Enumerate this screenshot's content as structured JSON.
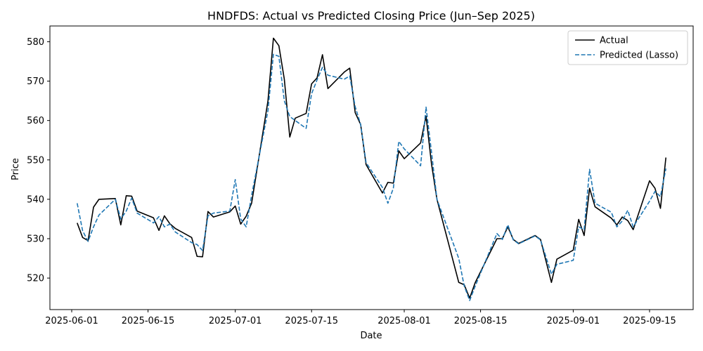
{
  "chart_data": {
    "type": "line",
    "title": "HNDFDS: Actual vs Predicted Closing Price (Jun–Sep 2025)",
    "xlabel": "Date",
    "ylabel": "Price",
    "xlim": [
      "2025-05-28",
      "2025-09-23"
    ],
    "ylim": [
      512,
      584
    ],
    "x_ticks": [
      "2025-06-01",
      "2025-06-15",
      "2025-07-01",
      "2025-07-15",
      "2025-08-01",
      "2025-08-15",
      "2025-09-01",
      "2025-09-15"
    ],
    "y_ticks": [
      520,
      530,
      540,
      550,
      560,
      570,
      580
    ],
    "legend_position": "top-right",
    "grid": false,
    "series": [
      {
        "name": "Actual",
        "color": "#000000",
        "style": "solid",
        "points": [
          [
            "2025-06-02",
            534.0
          ],
          [
            "2025-06-03",
            530.3
          ],
          [
            "2025-06-04",
            529.5
          ],
          [
            "2025-06-05",
            538.0
          ],
          [
            "2025-06-06",
            540.0
          ],
          [
            "2025-06-09",
            540.2
          ],
          [
            "2025-06-10",
            533.5
          ],
          [
            "2025-06-11",
            540.9
          ],
          [
            "2025-06-12",
            540.8
          ],
          [
            "2025-06-13",
            537.0
          ],
          [
            "2025-06-16",
            535.3
          ],
          [
            "2025-06-17",
            532.1
          ],
          [
            "2025-06-18",
            535.8
          ],
          [
            "2025-06-19",
            533.8
          ],
          [
            "2025-06-20",
            532.6
          ],
          [
            "2025-06-23",
            530.3
          ],
          [
            "2025-06-24",
            525.5
          ],
          [
            "2025-06-25",
            525.4
          ],
          [
            "2025-06-26",
            536.9
          ],
          [
            "2025-06-27",
            535.5
          ],
          [
            "2025-06-30",
            536.8
          ],
          [
            "2025-07-01",
            538.3
          ],
          [
            "2025-07-02",
            533.7
          ],
          [
            "2025-07-03",
            535.7
          ],
          [
            "2025-07-04",
            539.0
          ],
          [
            "2025-07-07",
            565.0
          ],
          [
            "2025-07-08",
            580.9
          ],
          [
            "2025-07-09",
            579.0
          ],
          [
            "2025-07-10",
            570.5
          ],
          [
            "2025-07-11",
            555.8
          ],
          [
            "2025-07-12",
            560.6
          ],
          [
            "2025-07-14",
            561.8
          ],
          [
            "2025-07-15",
            569.3
          ],
          [
            "2025-07-16",
            570.8
          ],
          [
            "2025-07-17",
            576.7
          ],
          [
            "2025-07-18",
            568.1
          ],
          [
            "2025-07-21",
            572.3
          ],
          [
            "2025-07-22",
            573.3
          ],
          [
            "2025-07-23",
            562.0
          ],
          [
            "2025-07-24",
            559.0
          ],
          [
            "2025-07-25",
            548.8
          ],
          [
            "2025-07-28",
            541.6
          ],
          [
            "2025-07-29",
            544.3
          ],
          [
            "2025-07-30",
            544.1
          ],
          [
            "2025-07-31",
            552.3
          ],
          [
            "2025-08-01",
            550.3
          ],
          [
            "2025-08-04",
            554.3
          ],
          [
            "2025-08-05",
            561.1
          ],
          [
            "2025-08-06",
            549.0
          ],
          [
            "2025-08-07",
            540.0
          ],
          [
            "2025-08-11",
            518.9
          ],
          [
            "2025-08-12",
            518.3
          ],
          [
            "2025-08-13",
            514.9
          ],
          [
            "2025-08-14",
            518.8
          ],
          [
            "2025-08-18",
            530.0
          ],
          [
            "2025-08-19",
            530.0
          ],
          [
            "2025-08-20",
            533.0
          ],
          [
            "2025-08-21",
            529.8
          ],
          [
            "2025-08-22",
            528.8
          ],
          [
            "2025-08-25",
            530.8
          ],
          [
            "2025-08-26",
            529.8
          ],
          [
            "2025-08-28",
            518.9
          ],
          [
            "2025-08-29",
            524.8
          ],
          [
            "2025-09-01",
            527.1
          ],
          [
            "2025-09-02",
            534.9
          ],
          [
            "2025-09-03",
            530.8
          ],
          [
            "2025-09-04",
            542.8
          ],
          [
            "2025-09-05",
            538.1
          ],
          [
            "2025-09-08",
            535.2
          ],
          [
            "2025-09-09",
            533.5
          ],
          [
            "2025-09-10",
            535.5
          ],
          [
            "2025-09-11",
            534.6
          ],
          [
            "2025-09-12",
            532.3
          ],
          [
            "2025-09-15",
            544.7
          ],
          [
            "2025-09-16",
            542.8
          ],
          [
            "2025-09-17",
            537.7
          ],
          [
            "2025-09-18",
            550.6
          ]
        ]
      },
      {
        "name": "Predicted (Lasso)",
        "color": "#1f77b4",
        "style": "dashed",
        "points": [
          [
            "2025-06-02",
            539.0
          ],
          [
            "2025-06-03",
            532.0
          ],
          [
            "2025-06-04",
            529.3
          ],
          [
            "2025-06-05",
            533.0
          ],
          [
            "2025-06-06",
            536.0
          ],
          [
            "2025-06-09",
            540.0
          ],
          [
            "2025-06-10",
            535.0
          ],
          [
            "2025-06-11",
            537.0
          ],
          [
            "2025-06-12",
            540.3
          ],
          [
            "2025-06-13",
            536.5
          ],
          [
            "2025-06-16",
            534.0
          ],
          [
            "2025-06-17",
            535.6
          ],
          [
            "2025-06-18",
            533.0
          ],
          [
            "2025-06-19",
            533.7
          ],
          [
            "2025-06-20",
            531.7
          ],
          [
            "2025-06-23",
            529.0
          ],
          [
            "2025-06-24",
            528.5
          ],
          [
            "2025-06-25",
            527.0
          ],
          [
            "2025-06-26",
            535.8
          ],
          [
            "2025-06-27",
            536.5
          ],
          [
            "2025-06-30",
            537.0
          ],
          [
            "2025-07-01",
            545.0
          ],
          [
            "2025-07-02",
            535.0
          ],
          [
            "2025-07-03",
            533.0
          ],
          [
            "2025-07-04",
            541.0
          ],
          [
            "2025-07-07",
            562.5
          ],
          [
            "2025-07-08",
            576.8
          ],
          [
            "2025-07-09",
            576.3
          ],
          [
            "2025-07-10",
            565.0
          ],
          [
            "2025-07-11",
            561.0
          ],
          [
            "2025-07-12",
            560.0
          ],
          [
            "2025-07-14",
            558.0
          ],
          [
            "2025-07-15",
            566.8
          ],
          [
            "2025-07-16",
            570.3
          ],
          [
            "2025-07-17",
            573.5
          ],
          [
            "2025-07-18",
            571.5
          ],
          [
            "2025-07-21",
            570.5
          ],
          [
            "2025-07-22",
            571.3
          ],
          [
            "2025-07-23",
            563.5
          ],
          [
            "2025-07-24",
            559.0
          ],
          [
            "2025-07-25",
            549.3
          ],
          [
            "2025-07-28",
            543.0
          ],
          [
            "2025-07-29",
            539.0
          ],
          [
            "2025-07-30",
            542.8
          ],
          [
            "2025-07-31",
            554.7
          ],
          [
            "2025-08-01",
            552.8
          ],
          [
            "2025-08-04",
            548.5
          ],
          [
            "2025-08-05",
            563.4
          ],
          [
            "2025-08-06",
            552.0
          ],
          [
            "2025-08-07",
            540.0
          ],
          [
            "2025-08-11",
            525.0
          ],
          [
            "2025-08-12",
            518.0
          ],
          [
            "2025-08-13",
            514.3
          ],
          [
            "2025-08-14",
            517.9
          ],
          [
            "2025-08-18",
            531.3
          ],
          [
            "2025-08-19",
            529.8
          ],
          [
            "2025-08-20",
            533.5
          ],
          [
            "2025-08-21",
            529.7
          ],
          [
            "2025-08-22",
            528.7
          ],
          [
            "2025-08-25",
            530.7
          ],
          [
            "2025-08-26",
            529.7
          ],
          [
            "2025-08-28",
            521.0
          ],
          [
            "2025-08-29",
            523.5
          ],
          [
            "2025-09-01",
            524.5
          ],
          [
            "2025-09-02",
            533.0
          ],
          [
            "2025-09-03",
            532.3
          ],
          [
            "2025-09-04",
            547.6
          ],
          [
            "2025-09-05",
            539.0
          ],
          [
            "2025-09-08",
            536.7
          ],
          [
            "2025-09-09",
            533.0
          ],
          [
            "2025-09-10",
            534.5
          ],
          [
            "2025-09-11",
            537.2
          ],
          [
            "2025-09-12",
            533.0
          ],
          [
            "2025-09-15",
            539.5
          ],
          [
            "2025-09-16",
            542.0
          ],
          [
            "2025-09-17",
            540.7
          ],
          [
            "2025-09-18",
            547.8
          ]
        ]
      }
    ]
  }
}
